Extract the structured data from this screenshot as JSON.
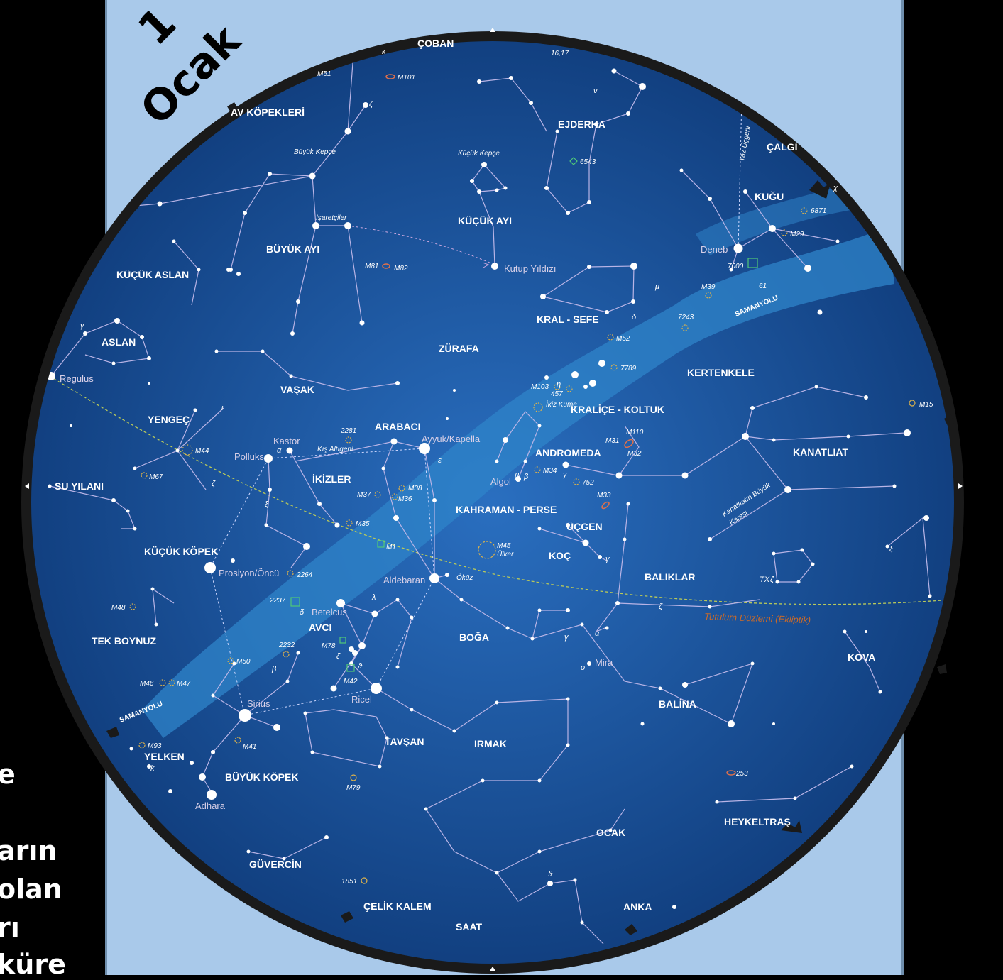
{
  "map": {
    "date_number": "1",
    "date_month": "Ocak",
    "side_text": [
      "e",
      "arın",
      "olan",
      "rı",
      "küre"
    ],
    "colors": {
      "sky_center": "#2a6fc0",
      "sky_edge": "#0f3b7a",
      "milky_way": "#2f84c9",
      "rim": "#1a1a1a",
      "panel": "#a9c9ea",
      "lines": "#b9b4e6",
      "ecliptic": "#b8c95a"
    },
    "constellations": [
      "ÇOBAN",
      "AV KÖPEKLERİ",
      "EJDERHA",
      "ÇALGI",
      "KUĞU",
      "KÜÇÜK AYI",
      "BÜYÜK AYI",
      "KÜÇÜK ASLAN",
      "ASLAN",
      "KRAL - SEFE",
      "ZÜRAFA",
      "KERTENKELE",
      "VAŞAK",
      "KRALİÇE - KOLTUK",
      "YENGEÇ",
      "ARABACI",
      "ANDROMEDA",
      "KANATLIAT",
      "SU YILANI",
      "İKİZLER",
      "KAHRAMAN - PERSE",
      "ÜÇGEN",
      "KÜÇÜK KÖPEK",
      "KOÇ",
      "BALIKLAR",
      "AVCI",
      "BOĞA",
      "TEK BOYNUZ",
      "KOVA",
      "BALİNA",
      "TAVŞAN",
      "IRMAK",
      "YELKEN",
      "BÜYÜK KÖPEK",
      "HEYKELTRAŞ",
      "OCAK",
      "GÜVERCİN",
      "ANKA",
      "ÇELİK KALEM",
      "SAAT"
    ],
    "stars": [
      "Regulus",
      "Kastor",
      "Polluks",
      "Ayyuk/Kapella",
      "Algol",
      "Prosiyon/Öncü",
      "Aldebaran",
      "Betelcus",
      "Ricel",
      "Sirius",
      "Adhara",
      "Deneb",
      "Mira",
      "Kutup Yıldızı",
      "Ülker"
    ],
    "asterisms": [
      "Büyük Kepçe",
      "Küçük Kepçe",
      "İşaretçiler",
      "Yaz Üçgeni",
      "Kış Altıgeni",
      "İkiz Küme",
      "Kanatlıatın Büyük",
      "Karesi",
      "Öküz",
      "Tutulum Düzlemi (Ekliptik)",
      "SAMANYOLU",
      "SAMANYOLU"
    ],
    "objects": [
      "M51",
      "M101",
      "16,17",
      "6543",
      "6871",
      "M29",
      "7000",
      "M39",
      "61",
      "M81",
      "M82",
      "M52",
      "7243",
      "7789",
      "M103",
      "457",
      "M110",
      "M31",
      "M32",
      "M34",
      "752",
      "M33",
      "M44",
      "M67",
      "2281",
      "M37",
      "M38",
      "M36",
      "M35",
      "M1",
      "M45",
      "M15",
      "2264",
      "M48",
      "2237",
      "2232",
      "M78",
      "M42",
      "M50",
      "M46",
      "M47",
      "M93",
      "M41",
      "M79",
      "1851",
      "253"
    ],
    "greek": [
      "κ",
      "ζ",
      "ν",
      "χ",
      "μ",
      "δ",
      "η",
      "α",
      "ε",
      "β",
      "γ",
      "ζ",
      "ξ",
      "λ",
      "ζ",
      "ϑ",
      "α",
      "γ",
      "ο",
      "γ",
      "ϑ",
      "β",
      "ξ",
      "k",
      "δ",
      "ι",
      "ζ",
      "β",
      "γ",
      "ζ"
    ]
  }
}
